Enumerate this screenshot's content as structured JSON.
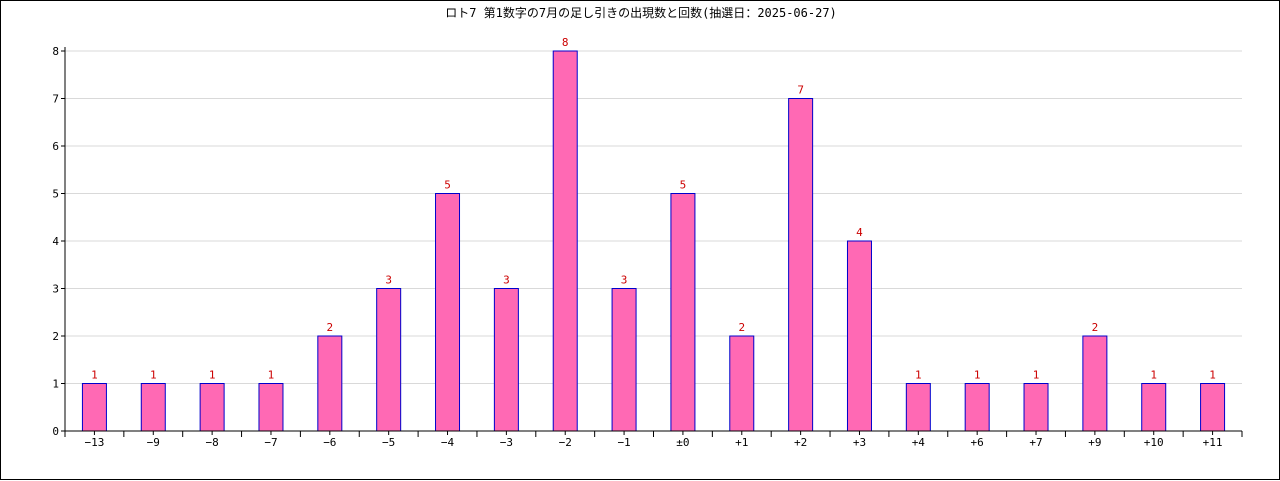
{
  "chart_data": {
    "type": "bar",
    "title": "ロト7 第1数字の7月の足し引きの出現数と回数(抽選日：2025-06-27)",
    "categories": [
      "−13",
      "−9",
      "−8",
      "−7",
      "−6",
      "−5",
      "−4",
      "−3",
      "−2",
      "−1",
      "±0",
      "+1",
      "+2",
      "+3",
      "+4",
      "+6",
      "+7",
      "+9",
      "+10",
      "+11"
    ],
    "values": [
      1,
      1,
      1,
      1,
      2,
      3,
      5,
      3,
      8,
      3,
      5,
      2,
      7,
      4,
      1,
      1,
      1,
      2,
      1,
      1
    ],
    "ylim": [
      0,
      8
    ],
    "yticks": [
      0,
      1,
      2,
      3,
      4,
      5,
      6,
      7,
      8
    ],
    "grid": true,
    "xlabel": "",
    "ylabel": "",
    "colors": {
      "bar_fill": "#ff69b4",
      "bar_stroke": "#0000cc",
      "label": "#cc0000",
      "grid": "#d9d9d9"
    }
  }
}
